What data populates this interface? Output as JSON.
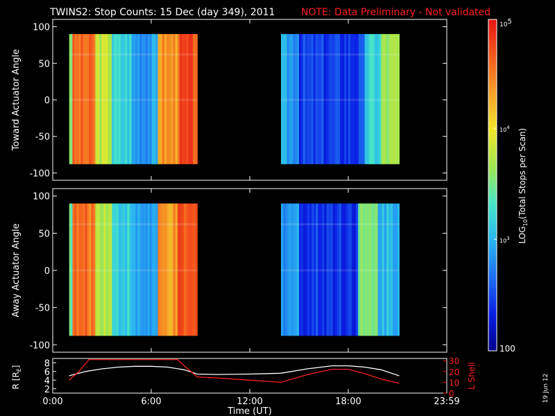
{
  "header": {
    "title": "TWINS2: Stop Counts: 15 Dec (day 349), 2011",
    "note": "NOTE: Data Preliminary - Not validated"
  },
  "colorbar": {
    "label_main": "LOG",
    "label_sub": "10",
    "label_rest": "(Total Stops per Scan)",
    "tick_top": "10",
    "tick_top_exp": "5",
    "tick_mid": "10",
    "tick_mid_exp": "4",
    "tick_low": "10",
    "tick_low_exp": "3",
    "tick_bottom": "100",
    "colors": [
      "#00008c",
      "#0a1ee6",
      "#1e6ef0",
      "#28b4f0",
      "#46e6c8",
      "#a0e650",
      "#f0e628",
      "#f5a028",
      "#f55a1e",
      "#e61414"
    ]
  },
  "stamp": "19 Jun 12",
  "chart_data": [
    {
      "type": "heatmap",
      "title": "Toward",
      "ylabel": "Toward Actuator Angle",
      "ylim": [
        -110,
        110
      ],
      "xlim": [
        0,
        24
      ],
      "y_ticks": [
        "100",
        "50",
        "0",
        "-50",
        "-100"
      ],
      "y_tick_values": [
        100,
        50,
        0,
        -50,
        -100
      ],
      "coverage_hours": [
        [
          1.0,
          8.8
        ],
        [
          13.9,
          21.1
        ]
      ],
      "angle_range": [
        -88,
        90
      ],
      "column_intensity": [
        {
          "start": 1.0,
          "end": 1.2,
          "level": 0.55
        },
        {
          "start": 1.2,
          "end": 2.6,
          "level": 0.85
        },
        {
          "start": 2.6,
          "end": 3.6,
          "level": 0.6
        },
        {
          "start": 3.6,
          "end": 4.8,
          "level": 0.4
        },
        {
          "start": 4.8,
          "end": 6.4,
          "level": 0.3
        },
        {
          "start": 6.4,
          "end": 7.6,
          "level": 0.8
        },
        {
          "start": 7.6,
          "end": 8.8,
          "level": 0.9
        },
        {
          "start": 13.9,
          "end": 15.0,
          "level": 0.3
        },
        {
          "start": 15.0,
          "end": 19.0,
          "level": 0.15
        },
        {
          "start": 19.0,
          "end": 20.0,
          "level": 0.4
        },
        {
          "start": 20.0,
          "end": 21.1,
          "level": 0.55
        }
      ]
    },
    {
      "type": "heatmap",
      "title": "Away",
      "ylabel": "Away Actuator Angle",
      "ylim": [
        -110,
        110
      ],
      "xlim": [
        0,
        24
      ],
      "y_ticks": [
        "100",
        "50",
        "0",
        "-50",
        "-100"
      ],
      "y_tick_values": [
        100,
        50,
        0,
        -50,
        -100
      ],
      "coverage_hours": [
        [
          1.0,
          8.8
        ],
        [
          13.9,
          21.1
        ]
      ],
      "angle_range": [
        -88,
        90
      ],
      "column_intensity": [
        {
          "start": 1.0,
          "end": 1.2,
          "level": 0.5
        },
        {
          "start": 1.2,
          "end": 2.6,
          "level": 0.85
        },
        {
          "start": 2.6,
          "end": 3.6,
          "level": 0.6
        },
        {
          "start": 3.6,
          "end": 4.8,
          "level": 0.4
        },
        {
          "start": 4.8,
          "end": 6.4,
          "level": 0.3
        },
        {
          "start": 6.4,
          "end": 7.6,
          "level": 0.78
        },
        {
          "start": 7.6,
          "end": 8.8,
          "level": 0.88
        },
        {
          "start": 13.9,
          "end": 15.0,
          "level": 0.3
        },
        {
          "start": 15.0,
          "end": 18.6,
          "level": 0.15
        },
        {
          "start": 18.6,
          "end": 19.8,
          "level": 0.5
        },
        {
          "start": 19.8,
          "end": 21.1,
          "level": 0.35
        }
      ]
    },
    {
      "type": "line",
      "ylabel": "R [R",
      "ylabel_sub": "E",
      "ylabel_end": "]",
      "ylabel_right": "L Shell",
      "xlabel": "Time (UT)",
      "xlim": [
        0,
        24
      ],
      "ylim": [
        1,
        9
      ],
      "ylim_right": [
        0,
        32
      ],
      "x_ticks": [
        "0:00",
        "6:00",
        "12:00",
        "18:00",
        "23:59"
      ],
      "x_tick_values": [
        0,
        6,
        12,
        18,
        24
      ],
      "y_ticks": [
        "8",
        "6",
        "4",
        "2"
      ],
      "y_tick_values": [
        8,
        6,
        4,
        2
      ],
      "y_ticks_right": [
        "30",
        "20",
        "10",
        "0"
      ],
      "y_tick_values_right": [
        30,
        20,
        10,
        0
      ],
      "series": [
        {
          "name": "R",
          "color": "#ffffff",
          "axis": "left",
          "x": [
            1.0,
            2.0,
            3.0,
            4.0,
            5.0,
            6.0,
            7.0,
            8.0,
            8.8,
            10,
            12,
            13.9,
            15.5,
            17.0,
            18.0,
            19.0,
            20.0,
            21.1
          ],
          "y": [
            5.0,
            6.0,
            6.6,
            7.0,
            7.2,
            7.2,
            7.0,
            6.4,
            5.4,
            5.3,
            5.4,
            5.6,
            6.6,
            7.3,
            7.3,
            7.0,
            6.4,
            5.0
          ]
        },
        {
          "name": "L Shell",
          "color": "#ff2020",
          "axis": "right",
          "x": [
            1.0,
            1.6,
            2.2,
            7.6,
            8.1,
            8.8,
            10,
            12,
            13.9,
            15.5,
            17.0,
            18.0,
            19.0,
            20.0,
            21.1
          ],
          "y": [
            12.0,
            20.0,
            31.0,
            31.0,
            24.0,
            15.0,
            14.0,
            12.0,
            10.0,
            17.0,
            22.0,
            22.0,
            18.0,
            13.0,
            9.0
          ]
        }
      ]
    }
  ]
}
